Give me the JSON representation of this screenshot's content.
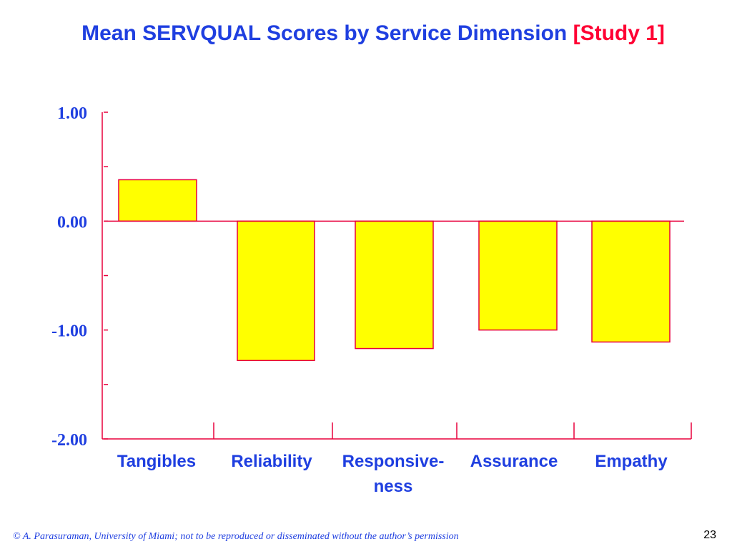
{
  "slide": {
    "title_main": "Mean SERVQUAL Scores by Service Dimension",
    "title_study": "[Study 1]",
    "footer": "© A. Parasuraman, University of Miami; not to be reproduced or disseminated without the author’s permission",
    "page_number": "23"
  },
  "colors": {
    "title": "#1f3fe0",
    "title_accent": "#ff0033",
    "bar_fill": "#ffff00",
    "bar_stroke": "#e8003c",
    "axis": "#e8003c",
    "labels": "#1f3fe0"
  },
  "chart_data": {
    "type": "bar",
    "title": "Mean SERVQUAL Scores by Service Dimension [Study 1]",
    "xlabel": "",
    "ylabel": "",
    "categories": [
      "Tangibles",
      "Reliability",
      "Responsive-ness",
      "Assurance",
      "Empathy"
    ],
    "category_label_lines": [
      [
        "Tangibles"
      ],
      [
        "Reliability"
      ],
      [
        "Responsive-",
        "ness"
      ],
      [
        "Assurance"
      ],
      [
        "Empathy"
      ]
    ],
    "values": [
      0.38,
      -1.28,
      -1.17,
      -1.0,
      -1.11
    ],
    "ylim": [
      -2.0,
      1.0
    ],
    "yticks": [
      1.0,
      0.0,
      -1.0,
      -2.0
    ],
    "ytick_labels": [
      "1.00",
      "0.00",
      "-1.00",
      "-2.00"
    ],
    "yminor_ticks": [
      0.5,
      -0.5,
      -1.5
    ],
    "grid": false,
    "legend": "none"
  }
}
